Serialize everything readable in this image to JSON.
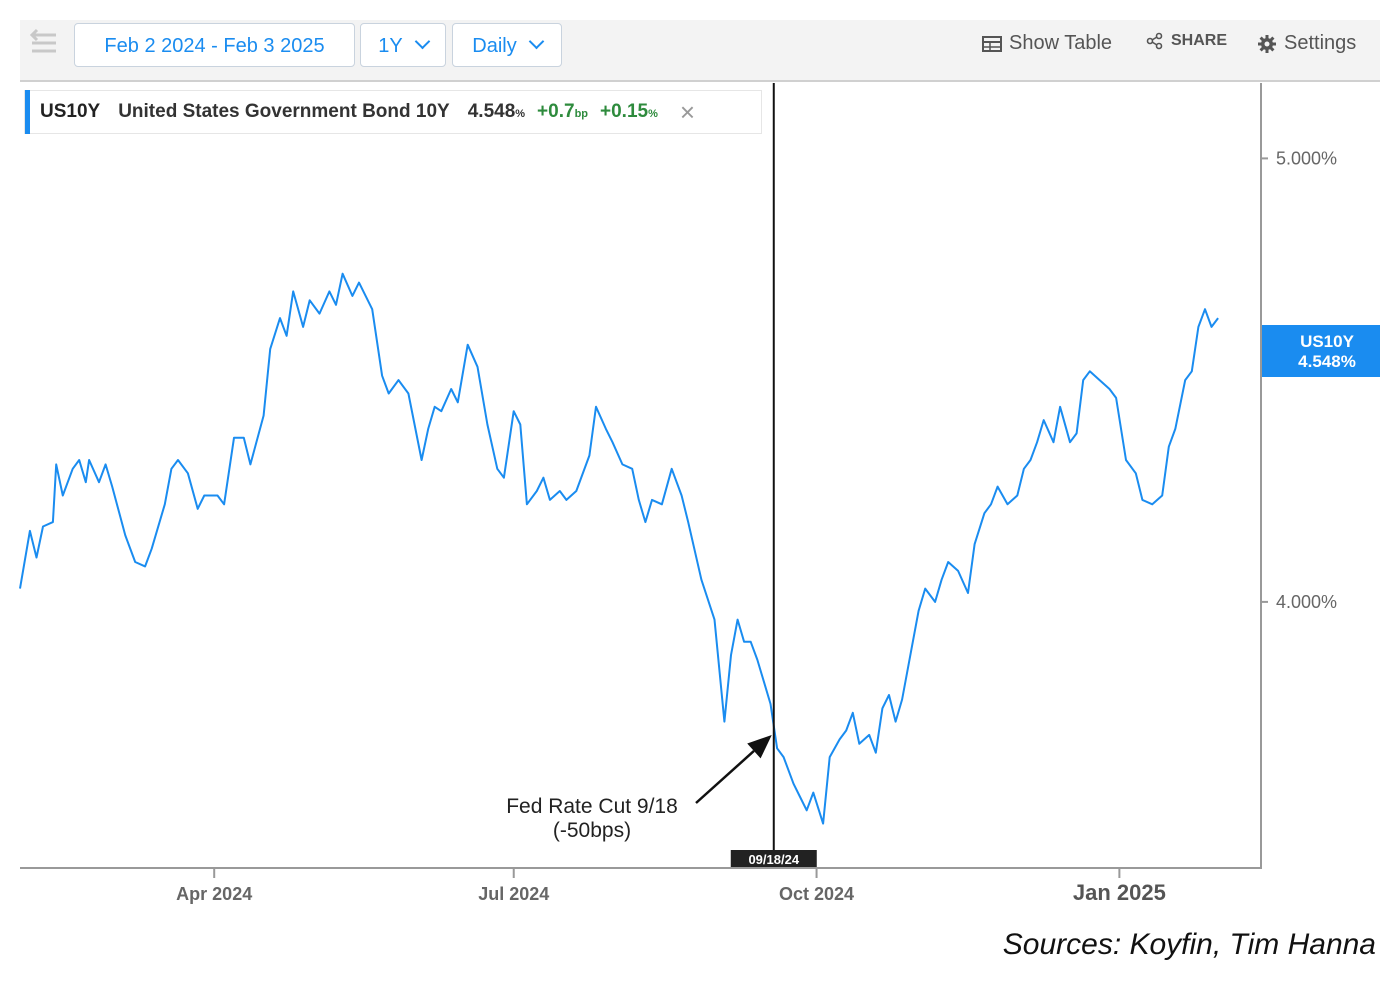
{
  "toolbar": {
    "date_range": "Feb 2 2024 - Feb 3 2025",
    "period": "1Y",
    "interval": "Daily",
    "show_table": "Show Table",
    "share": "SHARE",
    "settings": "Settings",
    "icons": [
      "menu-icon",
      "chevron-down-icon",
      "table-icon",
      "share-icon",
      "gear-icon",
      "close-icon"
    ]
  },
  "legend": {
    "ticker": "US10Y",
    "name": "United States Government Bond 10Y",
    "price": "4.548",
    "price_unit": "%",
    "change_bp": "+0.7",
    "change_bp_unit": "bp",
    "change_pct": "+0.15",
    "change_pct_unit": "%"
  },
  "price_tag": {
    "ticker": "US10Y",
    "value": "4.548%"
  },
  "source": "Sources: Koyfin, Tim Hanna",
  "colors": {
    "line": "#1a8cf0",
    "accent": "#1a8cf0",
    "positive": "#2e8b3d",
    "marker": "#111111"
  },
  "chart_data": {
    "type": "line",
    "x_range": [
      "2024-02-02",
      "2025-02-03"
    ],
    "y_ticks": [
      "4.000%",
      "5.000%"
    ],
    "ylim": [
      3.4,
      5.17
    ],
    "x_ticks": [
      {
        "date": "2024-04-01",
        "label": "Apr 2024"
      },
      {
        "date": "2024-07-01",
        "label": "Jul 2024"
      },
      {
        "date": "2024-10-01",
        "label": "Oct 2024"
      },
      {
        "date": "2025-01-01",
        "label": "Jan 2025"
      }
    ],
    "marker": {
      "date": "2024-09-18",
      "label": "09/18/24"
    },
    "annotation": {
      "date": "2024-09-18",
      "value": 3.7,
      "lines": [
        "Fed Rate Cut 9/18",
        "(-50bps)"
      ]
    },
    "series": [
      {
        "values": [
          [
            "2024-02-02",
            4.03
          ],
          [
            "2024-02-05",
            4.16
          ],
          [
            "2024-02-07",
            4.1
          ],
          [
            "2024-02-09",
            4.17
          ],
          [
            "2024-02-12",
            4.18
          ],
          [
            "2024-02-13",
            4.31
          ],
          [
            "2024-02-15",
            4.24
          ],
          [
            "2024-02-18",
            4.3
          ],
          [
            "2024-02-20",
            4.32
          ],
          [
            "2024-02-22",
            4.27
          ],
          [
            "2024-02-23",
            4.32
          ],
          [
            "2024-02-26",
            4.27
          ],
          [
            "2024-02-28",
            4.31
          ],
          [
            "2024-03-01",
            4.26
          ],
          [
            "2024-03-05",
            4.15
          ],
          [
            "2024-03-08",
            4.09
          ],
          [
            "2024-03-11",
            4.08
          ],
          [
            "2024-03-13",
            4.12
          ],
          [
            "2024-03-17",
            4.22
          ],
          [
            "2024-03-19",
            4.3
          ],
          [
            "2024-03-21",
            4.32
          ],
          [
            "2024-03-24",
            4.29
          ],
          [
            "2024-03-27",
            4.21
          ],
          [
            "2024-03-29",
            4.24
          ],
          [
            "2024-04-02",
            4.24
          ],
          [
            "2024-04-04",
            4.22
          ],
          [
            "2024-04-07",
            4.37
          ],
          [
            "2024-04-10",
            4.37
          ],
          [
            "2024-04-12",
            4.31
          ],
          [
            "2024-04-16",
            4.42
          ],
          [
            "2024-04-18",
            4.57
          ],
          [
            "2024-04-21",
            4.64
          ],
          [
            "2024-04-23",
            4.6
          ],
          [
            "2024-04-25",
            4.7
          ],
          [
            "2024-04-28",
            4.62
          ],
          [
            "2024-04-30",
            4.68
          ],
          [
            "2024-05-03",
            4.65
          ],
          [
            "2024-05-06",
            4.7
          ],
          [
            "2024-05-08",
            4.67
          ],
          [
            "2024-05-10",
            4.74
          ],
          [
            "2024-05-13",
            4.69
          ],
          [
            "2024-05-15",
            4.72
          ],
          [
            "2024-05-19",
            4.66
          ],
          [
            "2024-05-22",
            4.51
          ],
          [
            "2024-05-24",
            4.47
          ],
          [
            "2024-05-27",
            4.5
          ],
          [
            "2024-05-30",
            4.47
          ],
          [
            "2024-06-03",
            4.32
          ],
          [
            "2024-06-05",
            4.39
          ],
          [
            "2024-06-07",
            4.44
          ],
          [
            "2024-06-09",
            4.43
          ],
          [
            "2024-06-12",
            4.48
          ],
          [
            "2024-06-14",
            4.45
          ],
          [
            "2024-06-17",
            4.58
          ],
          [
            "2024-06-20",
            4.53
          ],
          [
            "2024-06-23",
            4.4
          ],
          [
            "2024-06-26",
            4.3
          ],
          [
            "2024-06-28",
            4.28
          ],
          [
            "2024-07-01",
            4.43
          ],
          [
            "2024-07-03",
            4.4
          ],
          [
            "2024-07-05",
            4.22
          ],
          [
            "2024-07-08",
            4.25
          ],
          [
            "2024-07-10",
            4.28
          ],
          [
            "2024-07-12",
            4.23
          ],
          [
            "2024-07-15",
            4.25
          ],
          [
            "2024-07-17",
            4.23
          ],
          [
            "2024-07-20",
            4.25
          ],
          [
            "2024-07-24",
            4.33
          ],
          [
            "2024-07-26",
            4.44
          ],
          [
            "2024-07-29",
            4.39
          ],
          [
            "2024-07-31",
            4.36
          ],
          [
            "2024-08-03",
            4.31
          ],
          [
            "2024-08-06",
            4.3
          ],
          [
            "2024-08-08",
            4.23
          ],
          [
            "2024-08-10",
            4.18
          ],
          [
            "2024-08-12",
            4.23
          ],
          [
            "2024-08-15",
            4.22
          ],
          [
            "2024-08-18",
            4.3
          ],
          [
            "2024-08-21",
            4.24
          ],
          [
            "2024-08-23",
            4.18
          ],
          [
            "2024-08-27",
            4.05
          ],
          [
            "2024-08-31",
            3.96
          ],
          [
            "2024-09-03",
            3.73
          ],
          [
            "2024-09-05",
            3.88
          ],
          [
            "2024-09-07",
            3.96
          ],
          [
            "2024-09-09",
            3.91
          ],
          [
            "2024-09-11",
            3.91
          ],
          [
            "2024-09-13",
            3.87
          ],
          [
            "2024-09-15",
            3.82
          ],
          [
            "2024-09-17",
            3.77
          ],
          [
            "2024-09-19",
            3.67
          ],
          [
            "2024-09-21",
            3.65
          ],
          [
            "2024-09-24",
            3.59
          ],
          [
            "2024-09-26",
            3.56
          ],
          [
            "2024-09-28",
            3.53
          ],
          [
            "2024-09-30",
            3.57
          ],
          [
            "2024-10-03",
            3.5
          ],
          [
            "2024-10-05",
            3.65
          ],
          [
            "2024-10-08",
            3.69
          ],
          [
            "2024-10-10",
            3.71
          ],
          [
            "2024-10-12",
            3.75
          ],
          [
            "2024-10-14",
            3.68
          ],
          [
            "2024-10-17",
            3.7
          ],
          [
            "2024-10-19",
            3.66
          ],
          [
            "2024-10-21",
            3.76
          ],
          [
            "2024-10-23",
            3.79
          ],
          [
            "2024-10-25",
            3.73
          ],
          [
            "2024-10-27",
            3.78
          ],
          [
            "2024-10-30",
            3.9
          ],
          [
            "2024-11-01",
            3.98
          ],
          [
            "2024-11-03",
            4.03
          ],
          [
            "2024-11-06",
            4.0
          ],
          [
            "2024-11-08",
            4.05
          ],
          [
            "2024-11-10",
            4.09
          ],
          [
            "2024-11-13",
            4.07
          ],
          [
            "2024-11-16",
            4.02
          ],
          [
            "2024-11-18",
            4.13
          ],
          [
            "2024-11-21",
            4.2
          ],
          [
            "2024-11-23",
            4.22
          ],
          [
            "2024-11-25",
            4.26
          ],
          [
            "2024-11-28",
            4.22
          ],
          [
            "2024-12-01",
            4.24
          ],
          [
            "2024-12-03",
            4.3
          ],
          [
            "2024-12-05",
            4.32
          ],
          [
            "2024-12-07",
            4.36
          ],
          [
            "2024-12-09",
            4.41
          ],
          [
            "2024-12-12",
            4.36
          ],
          [
            "2024-12-14",
            4.44
          ],
          [
            "2024-12-17",
            4.36
          ],
          [
            "2024-12-19",
            4.38
          ],
          [
            "2024-12-21",
            4.5
          ],
          [
            "2024-12-23",
            4.52
          ],
          [
            "2024-12-26",
            4.5
          ],
          [
            "2024-12-29",
            4.48
          ],
          [
            "2024-12-31",
            4.46
          ],
          [
            "2025-01-03",
            4.32
          ],
          [
            "2025-01-06",
            4.29
          ],
          [
            "2025-01-08",
            4.23
          ],
          [
            "2025-01-11",
            4.22
          ],
          [
            "2025-01-14",
            4.24
          ],
          [
            "2025-01-16",
            4.35
          ],
          [
            "2025-01-18",
            4.39
          ],
          [
            "2025-01-21",
            4.5
          ],
          [
            "2025-01-23",
            4.52
          ],
          [
            "2025-01-25",
            4.62
          ],
          [
            "2025-01-27",
            4.66
          ],
          [
            "2025-01-29",
            4.62
          ],
          [
            "2025-01-31",
            4.64
          ]
        ]
      }
    ]
  }
}
